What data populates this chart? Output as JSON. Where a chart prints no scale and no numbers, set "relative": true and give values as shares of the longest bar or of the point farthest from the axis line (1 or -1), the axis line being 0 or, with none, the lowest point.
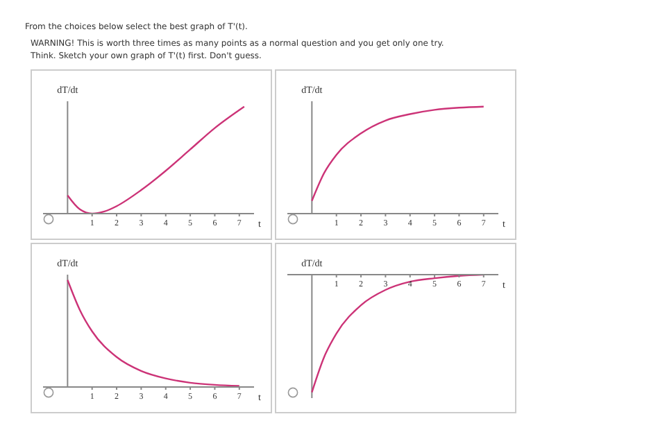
{
  "chart_data": [
    {
      "type": "line",
      "title": "From the choices below select the best graph of T'(t).",
      "annotations": [
        "WARNING! This is worth three times as many points as a normal question and you get only one try.",
        "Think. Sketch your own graph of T'(t) first. Don't guess."
      ],
      "xlabel": "t",
      "ylabel": "dT/dt",
      "relative": true,
      "xlim": [
        -1,
        7.6
      ],
      "xticks": [
        1,
        2,
        3,
        4,
        5,
        6,
        7
      ],
      "x": [
        0,
        0.5,
        1,
        1.5,
        2,
        3,
        4,
        5,
        6,
        7.2
      ],
      "series": [
        {
          "color": "#cc3377",
          "values": [
            0.17,
            0.04,
            0,
            0.02,
            0.07,
            0.22,
            0.4,
            0.6,
            0.8,
            1
          ]
        }
      ]
    },
    {
      "type": "line",
      "xlabel": "t",
      "ylabel": "dT/dt",
      "relative": true,
      "xlim": [
        -1,
        7.6
      ],
      "xticks": [
        1,
        2,
        3,
        4,
        5,
        6,
        7
      ],
      "x": [
        0,
        0.5,
        1,
        2,
        3,
        4,
        5,
        6,
        7
      ],
      "series": [
        {
          "color": "#cc3377",
          "values": [
            0.12,
            0.38,
            0.55,
            0.75,
            0.87,
            0.93,
            0.97,
            0.99,
            1
          ]
        }
      ]
    },
    {
      "type": "line",
      "xlabel": "t",
      "ylabel": "dT/dt",
      "relative": true,
      "xlim": [
        -1,
        7.6
      ],
      "xticks": [
        1,
        2,
        3,
        4,
        5,
        6,
        7
      ],
      "x": [
        0,
        0.5,
        1,
        2,
        3,
        4,
        5,
        6,
        7
      ],
      "series": [
        {
          "color": "#cc3377",
          "values": [
            1,
            0.72,
            0.52,
            0.28,
            0.15,
            0.08,
            0.04,
            0.02,
            0.01
          ]
        }
      ]
    },
    {
      "type": "line",
      "xlabel": "t",
      "ylabel": "dT/dt",
      "relative": true,
      "xlim": [
        -1,
        7.6
      ],
      "xticks": [
        1,
        2,
        3,
        4,
        5,
        6,
        7
      ],
      "x": [
        0,
        0.5,
        1,
        2,
        3,
        4,
        5,
        6,
        7
      ],
      "series": [
        {
          "color": "#cc3377",
          "values": [
            -1,
            -0.7,
            -0.5,
            -0.26,
            -0.13,
            -0.06,
            -0.03,
            -0.01,
            0
          ]
        }
      ]
    }
  ]
}
